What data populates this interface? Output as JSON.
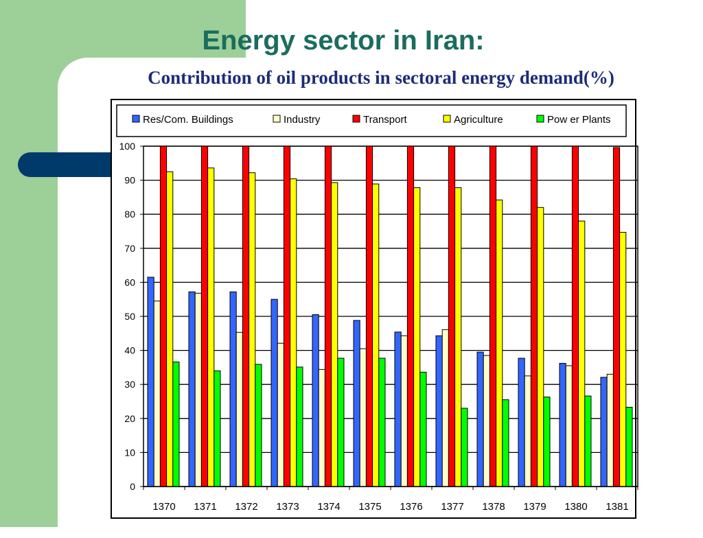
{
  "slide": {
    "title": "Energy sector in Iran:",
    "subtitle": "Contribution of oil products in sectoral energy demand(%)"
  },
  "colors": {
    "background_green": "#9dcf98",
    "accent_navy": "#003a6b",
    "title_teal": "#1a6d5e",
    "subtitle_navy": "#1c2c78"
  },
  "chart_data": {
    "type": "bar",
    "title": "",
    "xlabel": "",
    "ylabel": "",
    "ylim": [
      0,
      100
    ],
    "yticks": [
      0,
      10,
      20,
      30,
      40,
      50,
      60,
      70,
      80,
      90,
      100
    ],
    "grid": true,
    "legend_position": "top",
    "categories": [
      "1370",
      "1371",
      "1372",
      "1373",
      "1374",
      "1375",
      "1376",
      "1377",
      "1378",
      "1379",
      "1380",
      "1381"
    ],
    "series": [
      {
        "name": "Res/Com. Buildings",
        "color": "#3366ff",
        "values": [
          61.5,
          57.2,
          57.2,
          55,
          50.5,
          48.8,
          45.4,
          44.3,
          39.5,
          37.7,
          36.2,
          32.1
        ]
      },
      {
        "name": "Industry",
        "color": "#ffffcc",
        "values": [
          54.5,
          56.8,
          45.3,
          42.1,
          34.4,
          40.5,
          44.3,
          46.1,
          38.5,
          32.5,
          35.5,
          33
        ]
      },
      {
        "name": "Transport",
        "color": "#ff0000",
        "values": [
          100,
          100,
          100,
          100,
          100,
          100,
          100,
          100,
          100,
          100,
          100,
          99.6
        ]
      },
      {
        "name": "Agriculture",
        "color": "#ffff00",
        "values": [
          92.5,
          93.6,
          92.2,
          90.4,
          89.3,
          88.9,
          87.8,
          87.8,
          84.2,
          82,
          78,
          74.7
        ]
      },
      {
        "name": "Pow er Plants",
        "color": "#00ff00",
        "values": [
          36.6,
          34,
          35.9,
          35.1,
          37.7,
          37.7,
          33.6,
          23,
          25.5,
          26.3,
          26.6,
          23.3
        ]
      }
    ]
  }
}
